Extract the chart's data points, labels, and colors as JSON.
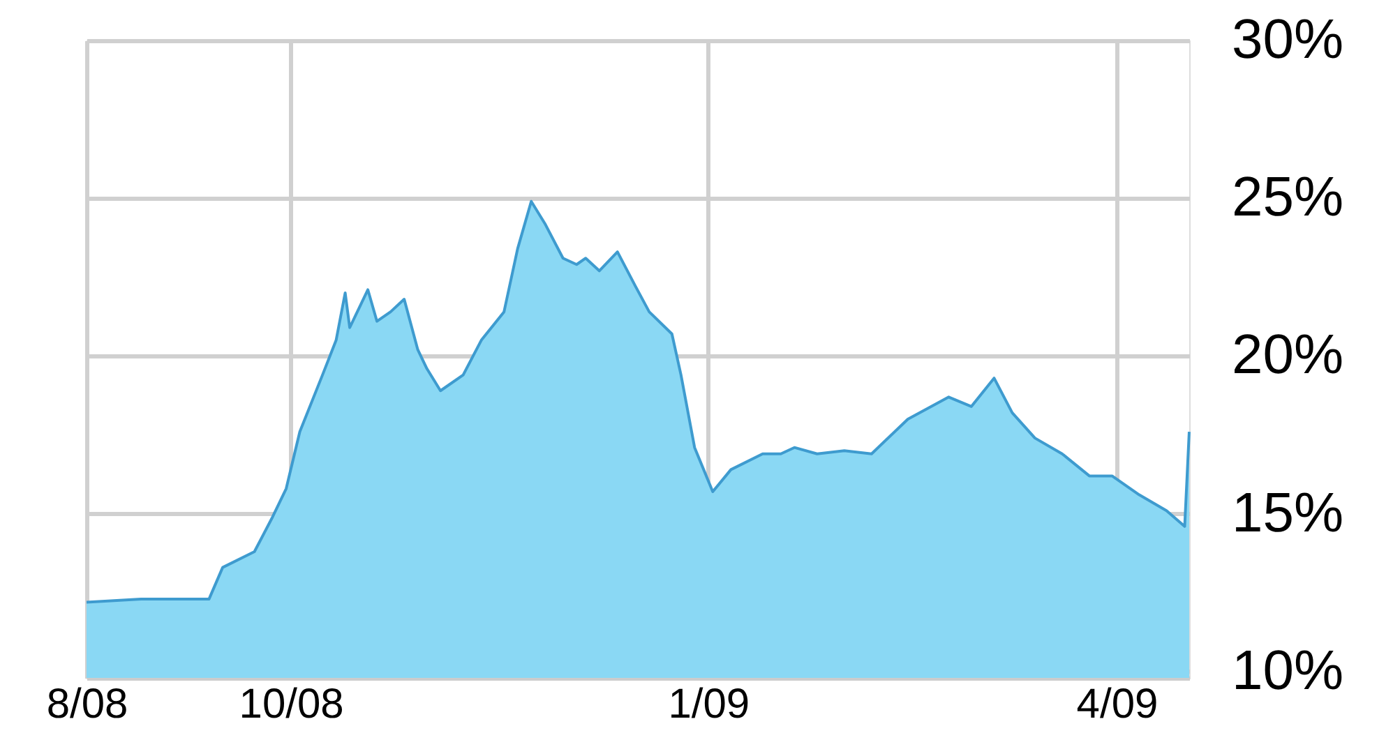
{
  "chart_data": {
    "type": "area",
    "x": [
      "2008-08-17",
      "2008-08-29",
      "2008-09-13",
      "2008-09-16",
      "2008-09-23",
      "2008-09-27",
      "2008-09-30",
      "2008-10-03",
      "2008-10-08",
      "2008-10-11",
      "2008-10-13",
      "2008-10-14",
      "2008-10-18",
      "2008-10-20",
      "2008-10-23",
      "2008-10-26",
      "2008-10-29",
      "2008-10-31",
      "2008-11-03",
      "2008-11-08",
      "2008-11-12",
      "2008-11-17",
      "2008-11-20",
      "2008-11-23",
      "2008-11-26",
      "2008-11-30",
      "2008-12-03",
      "2008-12-05",
      "2008-12-08",
      "2008-12-12",
      "2008-12-16",
      "2008-12-19",
      "2008-12-24",
      "2008-12-26",
      "2008-12-29",
      "2009-01-02",
      "2009-01-06",
      "2009-01-13",
      "2009-01-17",
      "2009-01-20",
      "2009-01-25",
      "2009-01-31",
      "2009-02-06",
      "2009-02-14",
      "2009-02-23",
      "2009-02-28",
      "2009-03-05",
      "2009-03-09",
      "2009-03-14",
      "2009-03-20",
      "2009-03-26",
      "2009-03-31",
      "2009-04-06",
      "2009-04-12",
      "2009-04-16",
      "2009-04-17"
    ],
    "series": [
      {
        "color": "#8ad8f4",
        "values": [
          12.2,
          12.3,
          12.3,
          13.3,
          13.8,
          14.9,
          15.8,
          17.6,
          19.4,
          20.5,
          22.0,
          20.9,
          22.1,
          21.1,
          21.4,
          21.8,
          20.2,
          19.6,
          18.9,
          19.4,
          20.5,
          21.4,
          23.4,
          24.9,
          24.2,
          23.1,
          22.9,
          23.1,
          22.7,
          23.3,
          22.2,
          21.4,
          20.7,
          19.4,
          17.1,
          15.7,
          16.4,
          16.9,
          16.9,
          17.1,
          16.9,
          17.0,
          16.9,
          18.0,
          18.7,
          18.4,
          19.3,
          18.2,
          17.4,
          16.9,
          16.2,
          16.2,
          15.6,
          15.1,
          14.6,
          17.6
        ]
      }
    ],
    "xlim": [
      "2008-08-17",
      "2009-04-17"
    ],
    "xticks": [
      {
        "value": "2008-08-17",
        "label": "8/08"
      },
      {
        "value": "2008-10-01",
        "label": "10/08"
      },
      {
        "value": "2009-01-01",
        "label": "1/09"
      },
      {
        "value": "2009-04-01",
        "label": "4/09"
      }
    ],
    "ylim": [
      9.8,
      30
    ],
    "yticks": [
      {
        "value": 10,
        "label": "10%"
      },
      {
        "value": 15,
        "label": "15%"
      },
      {
        "value": 20,
        "label": "20%"
      },
      {
        "value": 25,
        "label": "25%"
      },
      {
        "value": 30,
        "label": "30%"
      }
    ],
    "grid": true
  }
}
